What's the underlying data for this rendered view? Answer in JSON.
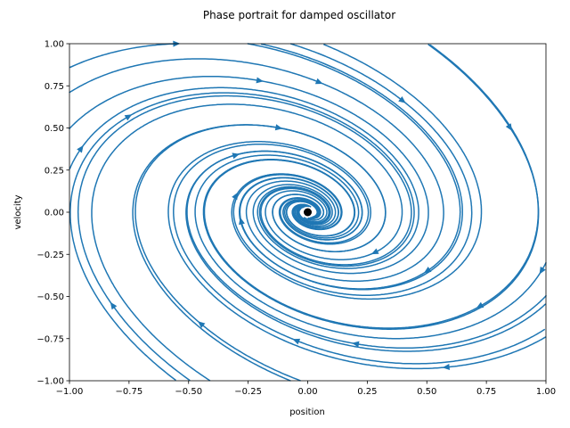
{
  "chart_data": {
    "type": "streamplot",
    "title": "Phase portrait for damped oscillator",
    "xlabel": "position",
    "ylabel": "velocity",
    "xlim": [
      -1.0,
      1.0
    ],
    "ylim": [
      -1.0,
      1.0
    ],
    "xticks": [
      "−1.00",
      "−0.75",
      "−0.50",
      "−0.25",
      "0.00",
      "0.25",
      "0.50",
      "0.75",
      "1.00"
    ],
    "yticks": [
      "−1.00",
      "−0.75",
      "−0.50",
      "−0.25",
      "0.00",
      "0.25",
      "0.50",
      "0.75",
      "1.00"
    ],
    "xtick_values": [
      -1.0,
      -0.75,
      -0.5,
      -0.25,
      0.0,
      0.25,
      0.5,
      0.75,
      1.0
    ],
    "ytick_values": [
      -1.0,
      -0.75,
      -0.5,
      -0.25,
      0.0,
      0.25,
      0.5,
      0.75,
      1.0
    ],
    "system": {
      "dx_dt": "v",
      "dv_dt": "-x - 0.5 v",
      "damping": 0.5
    },
    "equilibrium": {
      "x": 0.0,
      "y": 0.0
    },
    "stream_color": "#1f77b4",
    "equilibrium_color": "#000000",
    "grid": false
  }
}
